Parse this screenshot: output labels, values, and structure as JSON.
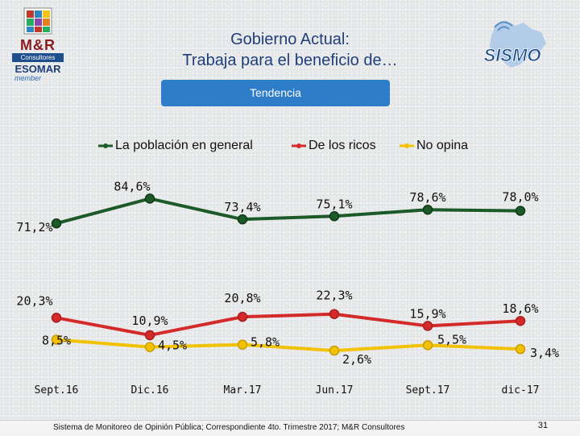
{
  "brand_left": {
    "name": "M&R",
    "sub": "Consultores",
    "org": "ESOMAR",
    "member": "member"
  },
  "brand_right": {
    "name": "SISMO"
  },
  "title_lines": [
    "Gobierno Actual:",
    "Trabaja para el beneficio de…"
  ],
  "tab_label": "Tendencia",
  "footer": {
    "text": "Sistema de Monitoreo de Opinión Pública; Correspondiente 4to. Trimestre 2017; M&R Consultores",
    "page_number": "31"
  },
  "colors": {
    "green": "#1d5a2a",
    "red": "#d42a2a",
    "yellow": "#f2c200",
    "title": "#1f3f7a",
    "tab": "#2e7dc9"
  },
  "chart_data": {
    "type": "line",
    "categories": [
      "Sept.16",
      "Dic.16",
      "Mar.17",
      "Jun.17",
      "Sept.17",
      "dic-17"
    ],
    "ylim": [
      0,
      100
    ],
    "legend_position": "top",
    "series": [
      {
        "name": "La población en general",
        "color": "#1d5a2a",
        "values": [
          71.2,
          84.6,
          73.4,
          75.1,
          78.6,
          78.0
        ],
        "labels": [
          "71,2%",
          "84,6%",
          "73,4%",
          "75,1%",
          "78,6%",
          "78,0%"
        ]
      },
      {
        "name": "De los ricos",
        "color": "#d42a2a",
        "values": [
          20.3,
          10.9,
          20.8,
          22.3,
          15.9,
          18.6
        ],
        "labels": [
          "20,3%",
          "10,9%",
          "20,8%",
          "22,3%",
          "15,9%",
          "18,6%"
        ]
      },
      {
        "name": "No opina",
        "color": "#f2c200",
        "values": [
          8.5,
          4.5,
          5.8,
          2.6,
          5.5,
          3.4
        ],
        "labels": [
          "8,5%",
          "4,5%",
          "5,8%",
          "2,6%",
          "5,5%",
          "3,4%"
        ]
      }
    ]
  }
}
